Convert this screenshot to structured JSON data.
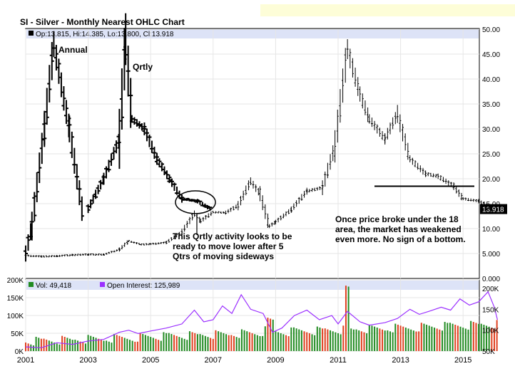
{
  "chart_data": [
    {
      "type": "ohlc",
      "title": "SI - Silver - Monthly Nearest OHLC Chart",
      "ohlc_readout": {
        "label": "Op:13.815, Hi:14.385, Lo:13.800, Cl:13.918",
        "open": 13.815,
        "high": 14.385,
        "low": 13.8,
        "close": 13.918
      },
      "last_price_label": "13.918",
      "y_ticks": [
        "5.000",
        "10.00",
        "15.00",
        "20.00",
        "25.00",
        "30.00",
        "35.00",
        "40.00",
        "45.00",
        "50.00"
      ],
      "y_zero_label": "0.000",
      "ylim": [
        0,
        50
      ],
      "x_ticks": [
        "2001",
        "2003",
        "2005",
        "2007",
        "2009",
        "2011",
        "2013",
        "2015"
      ],
      "series": [
        {
          "name": "monthly",
          "points": [
            [
              2001.0,
              4.6
            ],
            [
              2001.5,
              4.4
            ],
            [
              2002.0,
              4.5
            ],
            [
              2002.5,
              4.7
            ],
            [
              2003.0,
              4.8
            ],
            [
              2003.5,
              4.8
            ],
            [
              2004.0,
              5.8
            ],
            [
              2004.3,
              7.5
            ],
            [
              2004.7,
              6.8
            ],
            [
              2005.0,
              6.9
            ],
            [
              2005.5,
              7.2
            ],
            [
              2006.0,
              9.3
            ],
            [
              2006.4,
              13.0
            ],
            [
              2006.6,
              11.5
            ],
            [
              2007.0,
              13.3
            ],
            [
              2007.4,
              13.2
            ],
            [
              2007.8,
              14.6
            ],
            [
              2008.2,
              19.5
            ],
            [
              2008.5,
              17.0
            ],
            [
              2008.8,
              10.5
            ],
            [
              2009.0,
              11.3
            ],
            [
              2009.5,
              13.8
            ],
            [
              2010.0,
              17.5
            ],
            [
              2010.5,
              18.2
            ],
            [
              2010.9,
              26.5
            ],
            [
              2011.3,
              46.0
            ],
            [
              2011.7,
              37.0
            ],
            [
              2012.0,
              32.0
            ],
            [
              2012.5,
              28.0
            ],
            [
              2012.9,
              33.0
            ],
            [
              2013.3,
              24.0
            ],
            [
              2013.8,
              21.0
            ],
            [
              2014.2,
              20.5
            ],
            [
              2014.7,
              18.5
            ],
            [
              2015.0,
              16.0
            ],
            [
              2015.5,
              15.5
            ],
            [
              2015.9,
              14.0
            ]
          ]
        },
        {
          "name": "annual",
          "points": [
            [
              2001.0,
              5.0
            ],
            [
              2001.2,
              10.5
            ],
            [
              2001.6,
              30.0
            ],
            [
              2001.9,
              47.0
            ],
            [
              2002.4,
              30.0
            ],
            [
              2002.8,
              14.0
            ]
          ]
        },
        {
          "name": "quarterly",
          "points": [
            [
              2003.0,
              14.0
            ],
            [
              2003.5,
              20.0
            ],
            [
              2004.0,
              28.0
            ],
            [
              2004.2,
              48.0
            ],
            [
              2004.4,
              32.0
            ],
            [
              2004.8,
              30.0
            ],
            [
              2005.2,
              24.0
            ],
            [
              2005.6,
              20.0
            ],
            [
              2006.0,
              16.0
            ],
            [
              2006.5,
              15.5
            ],
            [
              2006.9,
              14.0
            ]
          ]
        }
      ],
      "support_line": 18.5,
      "annotations": {
        "annual": "Annual",
        "quarterly": "Qrtly",
        "qtr_note": [
          "This Qrtly activity looks to be",
          "ready to move lower after 5",
          "Qtrs of moving sideways"
        ],
        "break_note": [
          "Once price broke under the 18",
          "area, the market has weakened",
          "even more.  No sign of a bottom."
        ]
      }
    },
    {
      "type": "bar+line",
      "volume_label": "Vol: 49,418",
      "open_interest_label": "Open Interest: 125,989",
      "volume_color": "#228b22",
      "volume_down_color": "#e04020",
      "open_interest_color": "#9b30ff",
      "left_ticks": [
        "0K",
        "50K",
        "100K",
        "150K",
        "200K"
      ],
      "right_ticks": [
        "50K",
        "100K",
        "150K",
        "200K"
      ],
      "volume_ylim": [
        0,
        200
      ],
      "oi_ylim": [
        50,
        200
      ],
      "open_interest": [
        [
          2001.0,
          60
        ],
        [
          2001.5,
          58
        ],
        [
          2002.0,
          70
        ],
        [
          2002.5,
          66
        ],
        [
          2003.0,
          74
        ],
        [
          2003.5,
          78
        ],
        [
          2004.0,
          95
        ],
        [
          2004.3,
          100
        ],
        [
          2004.6,
          92
        ],
        [
          2005.0,
          98
        ],
        [
          2005.5,
          105
        ],
        [
          2006.0,
          115
        ],
        [
          2006.4,
          148
        ],
        [
          2006.7,
          120
        ],
        [
          2007.0,
          125
        ],
        [
          2007.3,
          158
        ],
        [
          2007.6,
          140
        ],
        [
          2007.9,
          185
        ],
        [
          2008.2,
          150
        ],
        [
          2008.6,
          140
        ],
        [
          2008.9,
          95
        ],
        [
          2009.2,
          105
        ],
        [
          2009.6,
          135
        ],
        [
          2010.0,
          148
        ],
        [
          2010.4,
          125
        ],
        [
          2010.8,
          135
        ],
        [
          2011.0,
          115
        ],
        [
          2011.3,
          145
        ],
        [
          2011.7,
          120
        ],
        [
          2012.0,
          112
        ],
        [
          2012.5,
          118
        ],
        [
          2012.9,
          128
        ],
        [
          2013.3,
          150
        ],
        [
          2013.6,
          138
        ],
        [
          2013.9,
          145
        ],
        [
          2014.3,
          155
        ],
        [
          2014.6,
          148
        ],
        [
          2014.9,
          175
        ],
        [
          2015.2,
          160
        ],
        [
          2015.5,
          168
        ],
        [
          2015.8,
          192
        ],
        [
          2016.0,
          155
        ],
        [
          2016.1,
          125
        ]
      ]
    }
  ]
}
